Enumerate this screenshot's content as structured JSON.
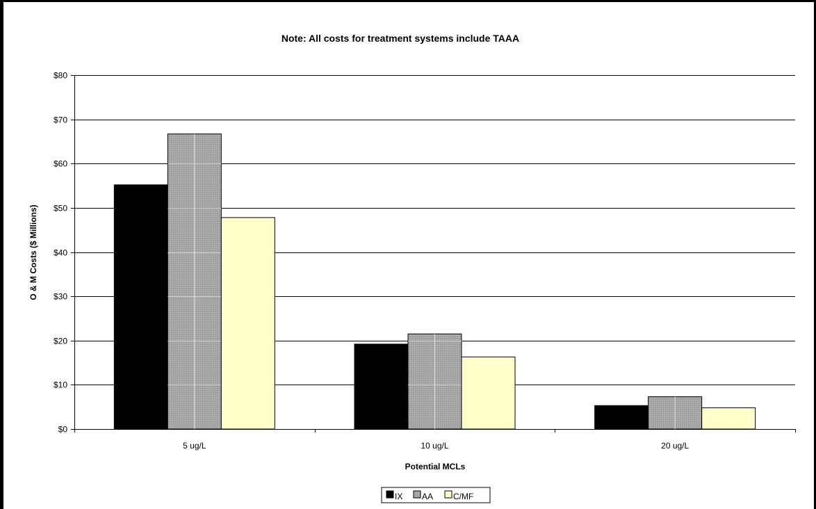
{
  "chart_data": {
    "type": "bar",
    "title": "Note: All costs for treatment systems include TAAA",
    "xlabel": "Potential MCLs",
    "ylabel": "O & M Costs ($ Millions)",
    "categories": [
      "5 ug/L",
      "10 ug/L",
      "20 ug/L"
    ],
    "series": [
      {
        "name": "IX",
        "values": [
          55.2,
          19.2,
          5.3
        ],
        "color": "#000000"
      },
      {
        "name": "AA",
        "values": [
          66.7,
          21.5,
          7.3
        ],
        "color": "#a6a6a6"
      },
      {
        "name": "C/MF",
        "values": [
          47.8,
          16.3,
          4.8
        ],
        "color": "#ffffcc"
      }
    ],
    "ylim": [
      0,
      80
    ],
    "yticks": [
      0,
      10,
      20,
      30,
      40,
      50,
      60,
      70,
      80
    ],
    "ytick_labels": [
      "$0",
      "$10",
      "$20",
      "$30",
      "$40",
      "$50",
      "$60",
      "$70",
      "$80"
    ],
    "grid": true,
    "legend_position": "bottom-center"
  }
}
